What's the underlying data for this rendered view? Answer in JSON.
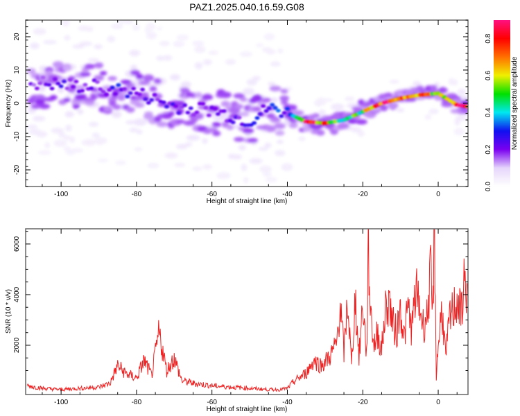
{
  "title": "PAZ1.2025.040.16.59.G08",
  "chart_data": [
    {
      "type": "heatmap",
      "panel": "top",
      "title": "PAZ1.2025.040.16.59.G08",
      "xlabel": "Height of straight line (km)",
      "ylabel": "Frequency (Hz)",
      "xlim": [
        -109.4,
        7.9
      ],
      "ylim": [
        -25,
        25
      ],
      "xticks": [
        -100,
        -80,
        -60,
        -40,
        -20,
        0
      ],
      "xtick_labels": [
        "-100",
        "-80",
        "-60",
        "-40",
        "-20",
        "0"
      ],
      "yticks": [
        -20,
        -10,
        0,
        10,
        20
      ],
      "ytick_labels": [
        "-20",
        "-10",
        "0",
        "10",
        "20"
      ],
      "colorbar": {
        "label": "Normalized spectral amplitude",
        "range": [
          0.0,
          0.9
        ],
        "ticks": [
          0.0,
          0.2,
          0.4,
          0.6,
          0.8
        ],
        "tick_labels": [
          "0.0",
          "0.2",
          "0.4",
          "0.6",
          "0.8"
        ],
        "colormap": [
          "#ffffff",
          "#e6d6fb",
          "#7a00f0",
          "#1010f0",
          "#00e8f0",
          "#00e000",
          "#f0f000",
          "#ff7000",
          "#ff0000",
          "#ff1080"
        ]
      },
      "ridge": {
        "description": "Dominant frequency vs height",
        "x": [
          -106,
          -100,
          -95,
          -90,
          -85,
          -80,
          -75,
          -70,
          -65,
          -60,
          -55,
          -50,
          -45,
          -40,
          -35,
          -30,
          -25,
          -20,
          -15,
          -10,
          -5,
          0,
          5,
          8
        ],
        "y": [
          6,
          5.5,
          5,
          5,
          4,
          3,
          1,
          -1,
          -1.5,
          -2,
          -4,
          -5.5,
          -1.5,
          -3,
          -5.5,
          -6,
          -5,
          -2.5,
          0,
          1.5,
          2.5,
          3,
          -0.5,
          -1
        ],
        "amplitude": [
          0.2,
          0.25,
          0.2,
          0.22,
          0.28,
          0.22,
          0.22,
          0.25,
          0.22,
          0.2,
          0.22,
          0.25,
          0.3,
          0.3,
          0.85,
          0.75,
          0.5,
          0.55,
          0.8,
          0.8,
          0.85,
          0.55,
          0.8,
          0.85
        ]
      }
    },
    {
      "type": "line",
      "panel": "bottom",
      "xlabel": "Height of straight line (km)",
      "ylabel": "SNR (10 * v/v)",
      "xlim": [
        -109.4,
        7.9
      ],
      "ylim": [
        55,
        6600
      ],
      "xticks": [
        -100,
        -80,
        -60,
        -40,
        -20,
        0
      ],
      "xtick_labels": [
        "-100",
        "-80",
        "-60",
        "-40",
        "-20",
        "0"
      ],
      "yticks": [
        2000,
        4000,
        6000
      ],
      "ytick_labels": [
        "2000",
        "4000",
        "6000"
      ],
      "line_color": "#ee2222",
      "series": [
        {
          "name": "SNR",
          "x": [
            -109,
            -105,
            -100,
            -95,
            -90,
            -87,
            -85,
            -83,
            -80,
            -78,
            -76,
            -74,
            -72,
            -70,
            -68,
            -65,
            -60,
            -55,
            -50,
            -45,
            -42,
            -40,
            -38,
            -35,
            -33,
            -31,
            -29,
            -27,
            -26,
            -25,
            -24,
            -23,
            -22,
            -21,
            -20,
            -19,
            -18.5,
            -18,
            -17,
            -16,
            -15,
            -14,
            -13,
            -12,
            -11,
            -10,
            -9,
            -8,
            -7,
            -6,
            -5,
            -4,
            -3,
            -2,
            -1.5,
            -1,
            -0.5,
            0,
            1,
            2,
            3,
            4,
            5,
            6,
            7,
            7.9
          ],
          "y": [
            400,
            300,
            250,
            300,
            350,
            500,
            1200,
            900,
            700,
            1400,
            800,
            2500,
            1000,
            1500,
            600,
            500,
            400,
            350,
            300,
            250,
            250,
            300,
            600,
            900,
            1400,
            1200,
            1500,
            2000,
            3600,
            1700,
            3800,
            1200,
            3900,
            1500,
            3700,
            1600,
            5700,
            3500,
            2000,
            2500,
            1800,
            3400,
            3800,
            2800,
            2500,
            3500,
            2300,
            3500,
            2600,
            4100,
            3600,
            2800,
            3100,
            4800,
            3000,
            6600,
            800,
            2000,
            3500,
            1500,
            3000,
            3400,
            3800,
            3200,
            4600,
            3900
          ]
        }
      ]
    }
  ]
}
